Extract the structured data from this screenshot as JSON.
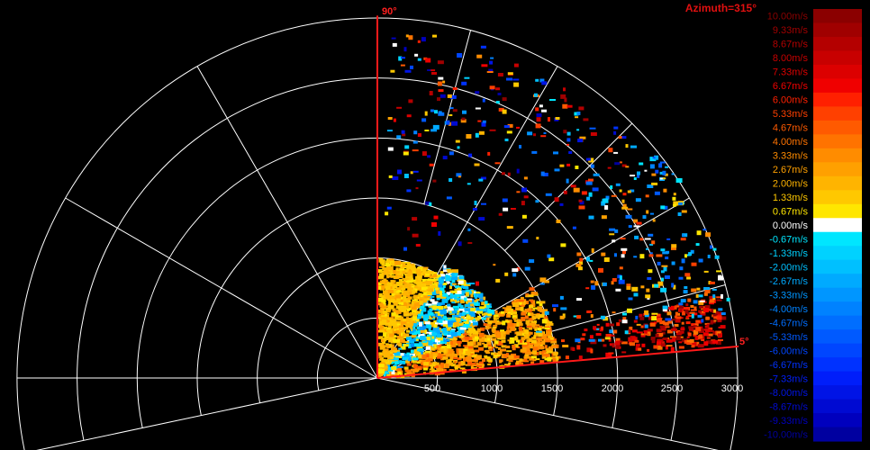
{
  "chart_data": {
    "type": "heatmap",
    "projection": "polar-sector",
    "title": "Azimuth=315°",
    "range_ticks": [
      500,
      1000,
      1500,
      2000,
      2500,
      3000
    ],
    "range_max": 3000,
    "sector_start_label": "5°",
    "sector_end_label": "90°",
    "sector_deg": [
      5,
      90
    ],
    "colorscale": {
      "min": -10,
      "max": 10,
      "labels": [
        "10.00m/s",
        "9.33m/s",
        "8.67m/s",
        "8.00m/s",
        "7.33m/s",
        "6.67m/s",
        "6.00m/s",
        "5.33m/s",
        "4.67m/s",
        "4.00m/s",
        "3.33m/s",
        "2.67m/s",
        "2.00m/s",
        "1.33m/s",
        "0.67m/s",
        "0.00m/s",
        "-0.67m/s",
        "-1.33m/s",
        "-2.00m/s",
        "-2.67m/s",
        "-3.33m/s",
        "-4.00m/s",
        "-4.67m/s",
        "-5.33m/s",
        "-6.00m/s",
        "-6.67m/s",
        "-7.33m/s",
        "-8.00m/s",
        "-8.67m/s",
        "-9.33m/s",
        "-10.00m/s"
      ],
      "colors": [
        "#8b0000",
        "#a00000",
        "#b40000",
        "#c80000",
        "#dc0000",
        "#f00000",
        "#ff2000",
        "#ff4000",
        "#ff5a00",
        "#ff7300",
        "#ff8c00",
        "#ffa000",
        "#ffb400",
        "#ffc800",
        "#ffe600",
        "#ffffff",
        "#00e6ff",
        "#00d2ff",
        "#00c0ff",
        "#00aaff",
        "#0096ff",
        "#0082ff",
        "#006eff",
        "#005aff",
        "#0046ff",
        "#0032ff",
        "#001efa",
        "#0014e6",
        "#000ad2",
        "#0000be",
        "#0000a0"
      ]
    },
    "series": [
      {
        "wedge_deg": [
          6,
          30
        ],
        "range": [
          0,
          1500
        ],
        "velocity_band": [
          0.67,
          4.67
        ]
      },
      {
        "wedge_deg": [
          6,
          14
        ],
        "range": [
          1500,
          2900
        ],
        "velocity_band": [
          4.0,
          10.0
        ]
      },
      {
        "wedge_deg": [
          30,
          60
        ],
        "range": [
          0,
          1100
        ],
        "velocity_band": [
          -3.33,
          2.0
        ]
      },
      {
        "wedge_deg": [
          60,
          90
        ],
        "range": [
          0,
          1000
        ],
        "velocity_band": [
          0.67,
          2.67
        ]
      },
      {
        "wedge_deg": [
          10,
          40
        ],
        "range": [
          1200,
          3000
        ],
        "velocity_band": [
          -6.0,
          6.0
        ]
      },
      {
        "wedge_deg": [
          40,
          88
        ],
        "range": [
          1000,
          2900
        ],
        "velocity_band": [
          -10.0,
          10.0
        ]
      }
    ]
  }
}
